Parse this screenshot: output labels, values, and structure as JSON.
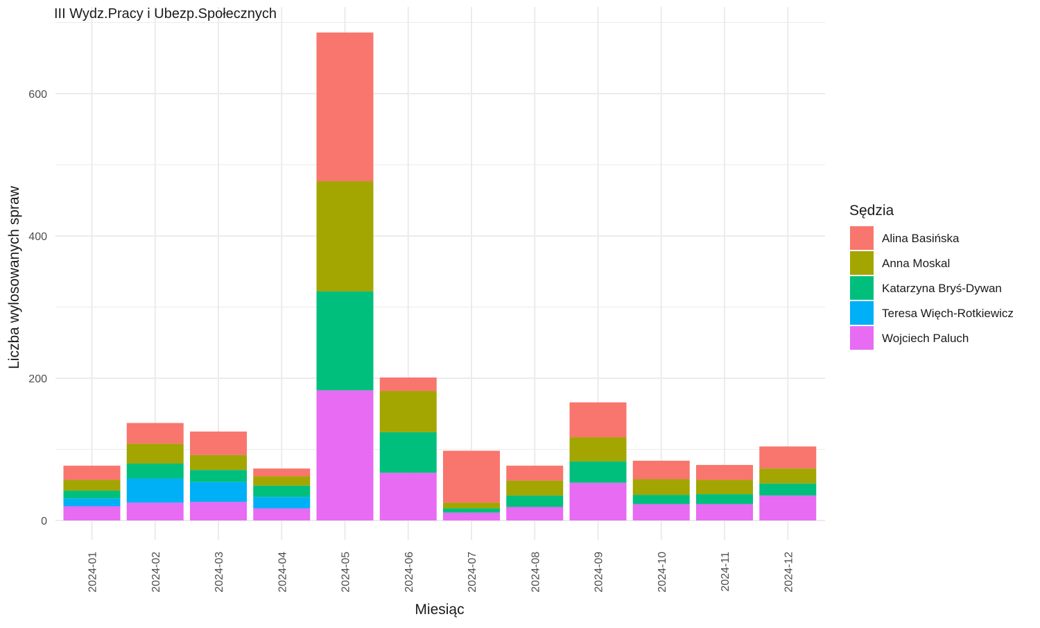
{
  "chart_data": {
    "type": "bar",
    "stacked": true,
    "title": "III Wydz.Pracy i Ubezp.Społecznych",
    "xlabel": "Miesiąc",
    "ylabel": "Liczba wylosowanych spraw",
    "ylim": [
      0,
      700
    ],
    "yticks": [
      0,
      200,
      400,
      600
    ],
    "grid": true,
    "legend": {
      "title": "Sędzia",
      "placement": "right"
    },
    "categories": [
      "2024-01",
      "2024-02",
      "2024-03",
      "2024-04",
      "2024-05",
      "2024-06",
      "2024-07",
      "2024-08",
      "2024-09",
      "2024-10",
      "2024-11",
      "2024-12"
    ],
    "series": [
      {
        "name": "Wojciech Paluch",
        "color": "#E76BF3",
        "values": [
          20,
          25,
          26,
          17,
          183,
          67,
          11,
          19,
          53,
          23,
          23,
          35
        ]
      },
      {
        "name": "Teresa Więch-Rotkiewicz",
        "color": "#00B0F6",
        "values": [
          11,
          34,
          28,
          16,
          0,
          0,
          0,
          0,
          0,
          0,
          0,
          0
        ]
      },
      {
        "name": "Katarzyna Bryś-Dywan",
        "color": "#00BF7D",
        "values": [
          11,
          21,
          17,
          16,
          139,
          57,
          6,
          16,
          30,
          13,
          14,
          17
        ]
      },
      {
        "name": "Anna Moskal",
        "color": "#A3A500",
        "values": [
          15,
          28,
          21,
          13,
          155,
          58,
          8,
          21,
          34,
          22,
          20,
          21
        ]
      },
      {
        "name": "Alina Basińska",
        "color": "#F8766D",
        "values": [
          20,
          29,
          33,
          11,
          209,
          19,
          73,
          21,
          49,
          26,
          21,
          31
        ]
      }
    ]
  }
}
